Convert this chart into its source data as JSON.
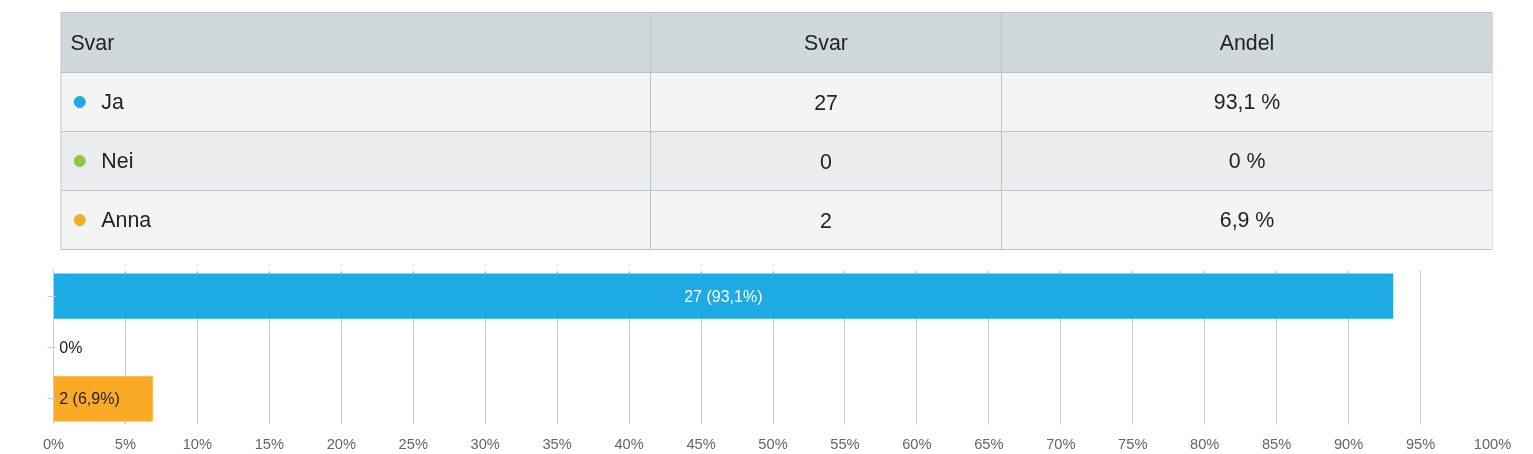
{
  "chart_data": [
    {
      "type": "other",
      "categories": [
        "Ja",
        "Nei",
        "Anna"
      ],
      "colors": [
        "#1eaae2",
        "#8dc63f",
        "#fbaa26"
      ],
      "annotations": [
        "Svar",
        "Svar",
        "Andel",
        "27",
        "93,1 %",
        "0",
        "0 %",
        "2",
        "6,9 %"
      ]
    },
    {
      "type": "bar",
      "orientation": "horizontal",
      "categories": [
        null,
        null,
        null
      ],
      "values": [
        93.1,
        0,
        6.9
      ],
      "colors": [
        "#1eaae2",
        "#8dc63f",
        "#fbaa26"
      ],
      "value_labels": [
        "27 (93,1%)",
        "0%",
        "2 (6,9%)"
      ],
      "xlim": [
        0,
        100
      ],
      "xticks": [
        {
          "value": 0,
          "label": "0%"
        },
        {
          "value": 5,
          "label": "5%"
        },
        {
          "value": 10,
          "label": "10%"
        },
        {
          "value": 15,
          "label": "15%"
        },
        {
          "value": 20,
          "label": "20%"
        },
        {
          "value": 25,
          "label": "25%"
        },
        {
          "value": 30,
          "label": "30%"
        },
        {
          "value": 35,
          "label": "35%"
        },
        {
          "value": 40,
          "label": "40%"
        },
        {
          "value": 45,
          "label": "45%"
        },
        {
          "value": 50,
          "label": "50%"
        },
        {
          "value": 55,
          "label": "55%"
        },
        {
          "value": 60,
          "label": "60%"
        },
        {
          "value": 65,
          "label": "65%"
        },
        {
          "value": 70,
          "label": "70%"
        },
        {
          "value": 75,
          "label": "75%"
        },
        {
          "value": 80,
          "label": "80%"
        },
        {
          "value": 85,
          "label": "85%"
        },
        {
          "value": 90,
          "label": "90%"
        },
        {
          "value": 95,
          "label": "95%"
        },
        {
          "value": 100,
          "label": "100%"
        }
      ],
      "grid": "x",
      "tick_labels": "x"
    }
  ]
}
